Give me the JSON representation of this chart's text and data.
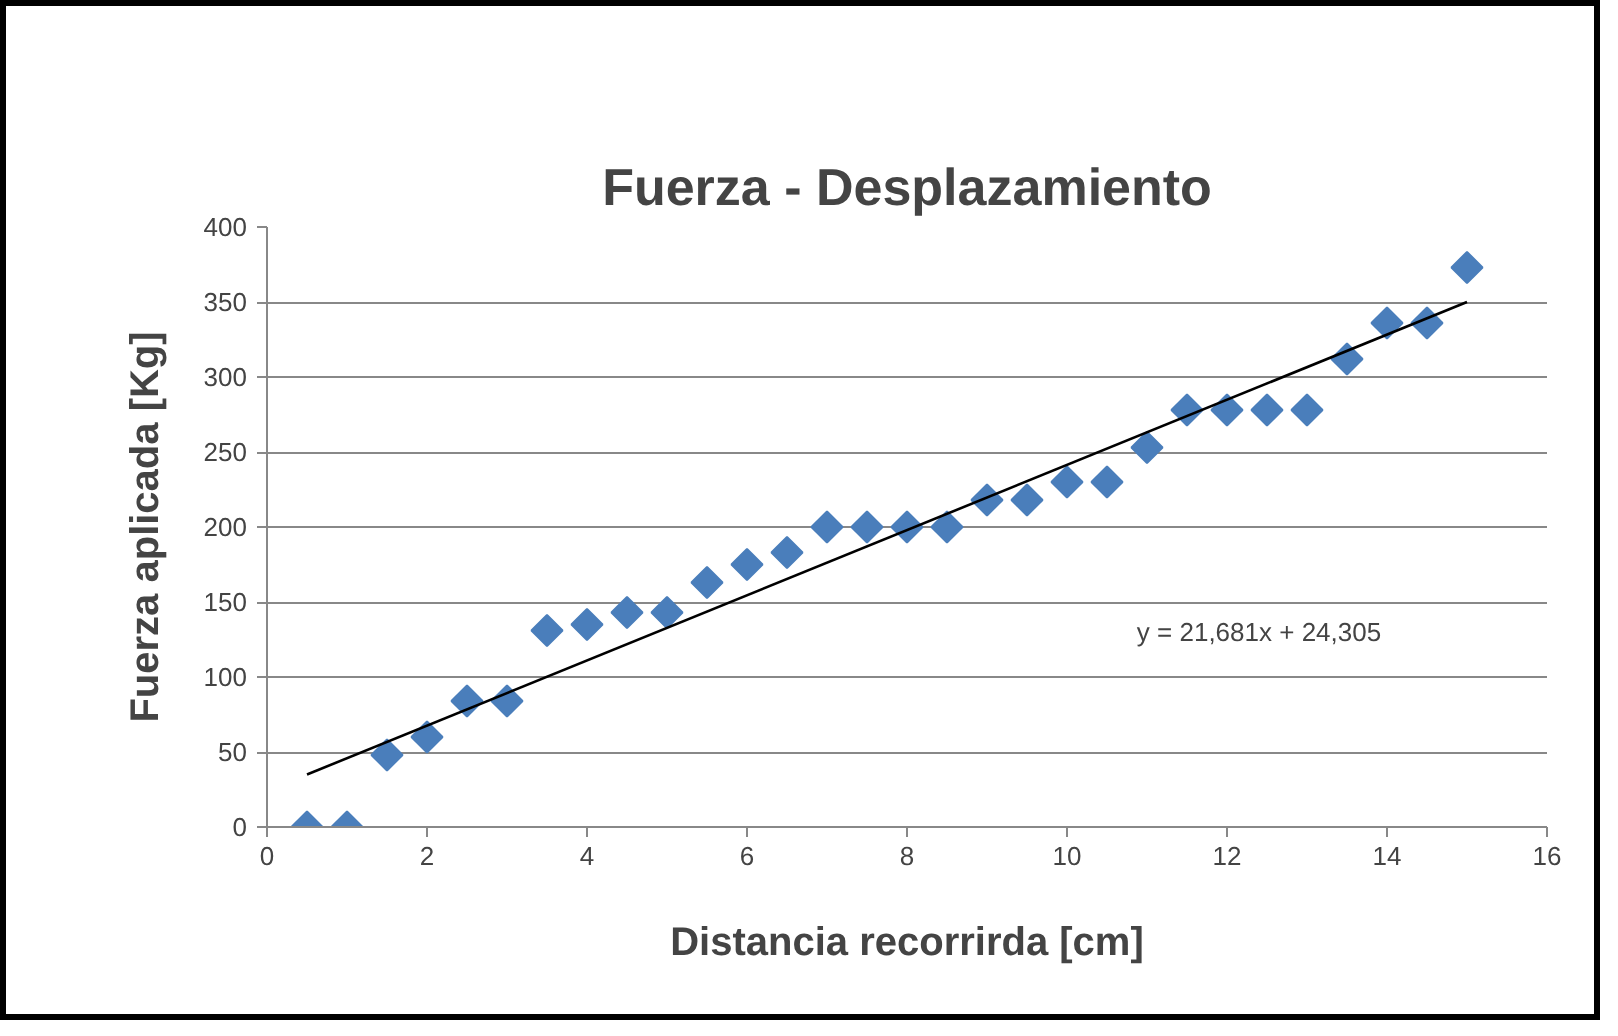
{
  "chart_data": {
    "type": "scatter",
    "title": "Fuerza - Desplazamiento",
    "xlabel": "Distancia recorrirda [cm]",
    "ylabel": "Fuerza aplicada [Kg]",
    "x": [
      0.5,
      1,
      1.5,
      2,
      2.5,
      3,
      3.5,
      4,
      4.5,
      5,
      5.5,
      6,
      6.5,
      7,
      7.5,
      8,
      8.5,
      9,
      9.5,
      10,
      10.5,
      11,
      11.5,
      12,
      12.5,
      13,
      13.5,
      14,
      14.5,
      15
    ],
    "series": [
      {
        "color": "#4a7ebb",
        "marker": "diamond",
        "values": [
          0,
          0,
          48,
          60,
          84,
          84,
          131,
          135,
          143,
          143,
          163,
          175,
          183,
          200,
          200,
          200,
          200,
          218,
          218,
          230,
          230,
          253,
          278,
          278,
          278,
          278,
          312,
          336,
          336,
          373
        ]
      },
      {
        "type": "line",
        "color": "#000000",
        "x": [
          0.5,
          15
        ],
        "values": [
          35,
          350
        ]
      }
    ],
    "annotations": [
      "y = 21,681x + 24,305"
    ],
    "xlim": [
      0,
      16
    ],
    "xticks": [
      0,
      2,
      4,
      6,
      8,
      10,
      12,
      14,
      16
    ],
    "ylim": [
      0,
      400
    ],
    "yticks": [
      0,
      50,
      100,
      150,
      200,
      250,
      300,
      350,
      400
    ],
    "grid": "y"
  }
}
